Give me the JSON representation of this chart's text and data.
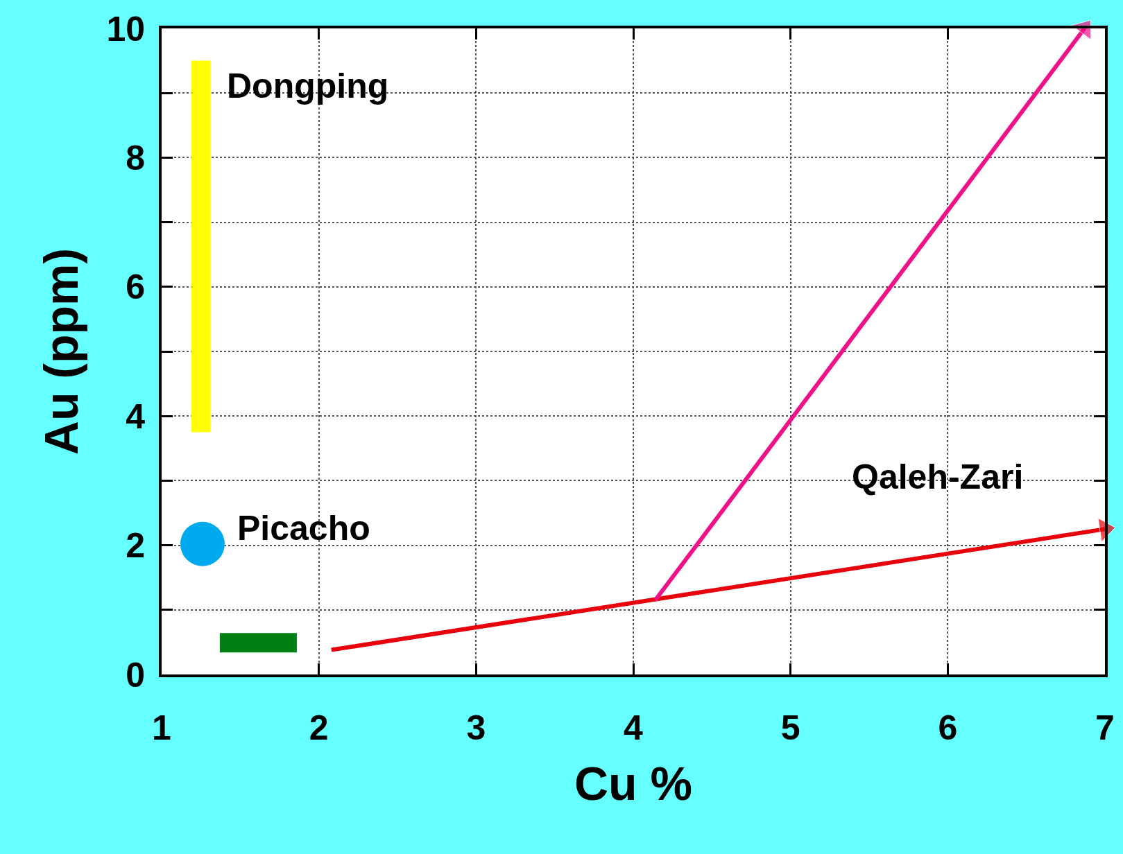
{
  "chart_data": {
    "type": "line",
    "xlabel": "Cu %",
    "ylabel": "Au (ppm)",
    "xlim": [
      1,
      7
    ],
    "xticks": [
      1,
      2,
      3,
      4,
      5,
      6,
      7
    ],
    "ylim": [
      0,
      10
    ],
    "yticks": [
      0,
      {
        "value": 1,
        "label": null
      },
      2,
      {
        "value": 3,
        "label": null
      },
      4,
      {
        "value": 5,
        "label": null
      },
      6,
      {
        "value": 7,
        "label": null
      },
      8,
      {
        "value": 9,
        "label": null
      },
      10
    ],
    "grid": true,
    "series": [
      {
        "name": "Dongping",
        "marker": "none",
        "color": "#ffff00",
        "x": [
          1.25,
          1.25
        ],
        "values": [
          3.75,
          9.5
        ]
      },
      {
        "name": "Picacho",
        "type": "scatter",
        "marker": "circle",
        "color": "#00aaee",
        "x": [
          1.26
        ],
        "values": [
          2.02
        ]
      },
      {
        "marker": "none",
        "color": "#007f14",
        "x": [
          1.37,
          1.86
        ],
        "values": [
          0.49,
          0.49
        ]
      },
      {
        "name": "Qaleh-Zari",
        "marker": "triangle",
        "color": "#e8000b",
        "x": [
          2.08,
          7.0
        ],
        "values": [
          0.38,
          2.25
        ]
      },
      {
        "marker": "triangle",
        "color": "#ee1188",
        "x": [
          4.14,
          6.87
        ],
        "values": [
          1.15,
          10
        ]
      }
    ]
  }
}
